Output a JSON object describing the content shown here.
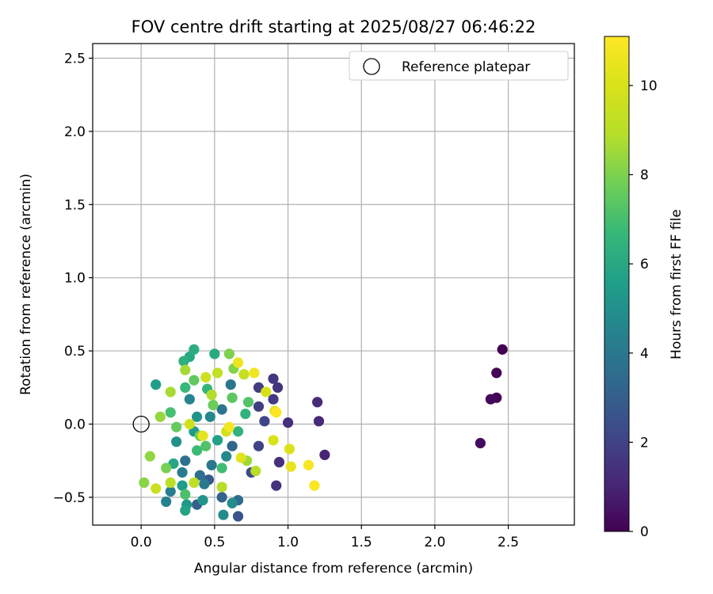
{
  "chart_data": {
    "type": "scatter",
    "title": "FOV centre drift starting at 2025/08/27 06:46:22",
    "xlabel": "Angular distance from reference (arcmin)",
    "ylabel": "Rotation from reference (arcmin)",
    "xlim": [
      -0.33,
      2.95
    ],
    "ylim": [
      -0.69,
      2.6
    ],
    "xticks": [
      0.0,
      0.5,
      1.0,
      1.5,
      2.0,
      2.5
    ],
    "xtick_labels": [
      "0.0",
      "0.5",
      "1.0",
      "1.5",
      "2.0",
      "2.5"
    ],
    "yticks": [
      -0.5,
      0.0,
      0.5,
      1.0,
      1.5,
      2.0,
      2.5
    ],
    "ytick_labels": [
      "−0.5",
      "0.0",
      "0.5",
      "1.0",
      "1.5",
      "2.0",
      "2.5"
    ],
    "grid": true,
    "legend": {
      "placement": "top-right",
      "entries": [
        "Reference platepar"
      ]
    },
    "reference_point": {
      "x": 0.0,
      "y": 0.0,
      "label": "Reference platepar"
    },
    "colorbar": {
      "label": "Hours from first FF file",
      "colormap": "viridis",
      "range": [
        0,
        11.1
      ],
      "ticks": [
        0,
        2,
        4,
        6,
        8,
        10
      ],
      "tick_labels": [
        "0",
        "2",
        "4",
        "6",
        "8",
        "10"
      ]
    },
    "points": [
      {
        "x": 2.46,
        "y": 0.51,
        "h": 0.0
      },
      {
        "x": 2.42,
        "y": 0.35,
        "h": 0.1
      },
      {
        "x": 2.42,
        "y": 0.18,
        "h": 0.1
      },
      {
        "x": 2.38,
        "y": 0.17,
        "h": 0.2
      },
      {
        "x": 2.31,
        "y": -0.13,
        "h": 0.3
      },
      {
        "x": 1.25,
        "y": -0.21,
        "h": 1.0
      },
      {
        "x": 1.21,
        "y": 0.02,
        "h": 1.1
      },
      {
        "x": 1.2,
        "y": 0.15,
        "h": 1.2
      },
      {
        "x": 1.0,
        "y": 0.01,
        "h": 1.3
      },
      {
        "x": 0.94,
        "y": -0.26,
        "h": 1.4
      },
      {
        "x": 0.92,
        "y": -0.42,
        "h": 1.5
      },
      {
        "x": 0.93,
        "y": 0.25,
        "h": 1.5
      },
      {
        "x": 0.9,
        "y": 0.31,
        "h": 1.6
      },
      {
        "x": 0.9,
        "y": 0.17,
        "h": 1.7
      },
      {
        "x": 0.8,
        "y": 0.25,
        "h": 1.8
      },
      {
        "x": 0.8,
        "y": 0.12,
        "h": 1.9
      },
      {
        "x": 0.8,
        "y": -0.15,
        "h": 2.0
      },
      {
        "x": 0.84,
        "y": 0.02,
        "h": 2.1
      },
      {
        "x": 0.75,
        "y": -0.33,
        "h": 2.3
      },
      {
        "x": 0.66,
        "y": -0.63,
        "h": 2.6
      },
      {
        "x": 0.46,
        "y": -0.38,
        "h": 2.8
      },
      {
        "x": 0.38,
        "y": -0.55,
        "h": 3.0
      },
      {
        "x": 0.55,
        "y": -0.5,
        "h": 3.2
      },
      {
        "x": 0.62,
        "y": -0.15,
        "h": 3.3
      },
      {
        "x": 0.66,
        "y": -0.52,
        "h": 3.5
      },
      {
        "x": 0.4,
        "y": -0.35,
        "h": 3.6
      },
      {
        "x": 0.3,
        "y": -0.25,
        "h": 3.7
      },
      {
        "x": 0.55,
        "y": 0.1,
        "h": 3.8
      },
      {
        "x": 0.61,
        "y": 0.27,
        "h": 3.9
      },
      {
        "x": 0.48,
        "y": -0.28,
        "h": 4.0
      },
      {
        "x": 0.43,
        "y": -0.41,
        "h": 4.1
      },
      {
        "x": 0.28,
        "y": -0.33,
        "h": 4.2
      },
      {
        "x": 0.2,
        "y": -0.46,
        "h": 4.3
      },
      {
        "x": 0.17,
        "y": -0.53,
        "h": 4.4
      },
      {
        "x": 0.33,
        "y": 0.17,
        "h": 4.5
      },
      {
        "x": 0.47,
        "y": 0.05,
        "h": 4.6
      },
      {
        "x": 0.58,
        "y": -0.22,
        "h": 4.7
      },
      {
        "x": 0.56,
        "y": -0.62,
        "h": 4.8
      },
      {
        "x": 0.62,
        "y": -0.54,
        "h": 4.9
      },
      {
        "x": 0.24,
        "y": -0.12,
        "h": 5.0
      },
      {
        "x": 0.38,
        "y": 0.05,
        "h": 5.1
      },
      {
        "x": 0.42,
        "y": -0.52,
        "h": 5.2
      },
      {
        "x": 0.31,
        "y": -0.55,
        "h": 5.3
      },
      {
        "x": 0.36,
        "y": -0.05,
        "h": 5.4
      },
      {
        "x": 0.28,
        "y": -0.42,
        "h": 5.5
      },
      {
        "x": 0.1,
        "y": 0.27,
        "h": 5.6
      },
      {
        "x": 0.52,
        "y": -0.11,
        "h": 5.7
      },
      {
        "x": 0.3,
        "y": -0.59,
        "h": 5.8
      },
      {
        "x": 0.22,
        "y": -0.27,
        "h": 5.9
      },
      {
        "x": 0.33,
        "y": 0.46,
        "h": 6.0
      },
      {
        "x": 0.5,
        "y": 0.48,
        "h": 6.1
      },
      {
        "x": 0.36,
        "y": 0.51,
        "h": 6.2
      },
      {
        "x": 0.29,
        "y": 0.43,
        "h": 6.3
      },
      {
        "x": 0.71,
        "y": 0.07,
        "h": 6.4
      },
      {
        "x": 0.66,
        "y": -0.05,
        "h": 6.5
      },
      {
        "x": 0.45,
        "y": 0.24,
        "h": 6.6
      },
      {
        "x": 0.3,
        "y": 0.25,
        "h": 6.7
      },
      {
        "x": 0.38,
        "y": -0.18,
        "h": 6.8
      },
      {
        "x": 0.55,
        "y": -0.3,
        "h": 6.9
      },
      {
        "x": 0.2,
        "y": 0.08,
        "h": 7.0
      },
      {
        "x": 0.3,
        "y": -0.48,
        "h": 7.1
      },
      {
        "x": 0.44,
        "y": -0.15,
        "h": 7.2
      },
      {
        "x": 0.73,
        "y": 0.15,
        "h": 7.3
      },
      {
        "x": 0.62,
        "y": 0.18,
        "h": 7.4
      },
      {
        "x": 0.36,
        "y": 0.3,
        "h": 7.5
      },
      {
        "x": 0.24,
        "y": -0.02,
        "h": 7.6
      },
      {
        "x": 0.49,
        "y": 0.13,
        "h": 7.7
      },
      {
        "x": 0.4,
        "y": -0.08,
        "h": 7.8
      },
      {
        "x": 0.17,
        "y": -0.3,
        "h": 7.9
      },
      {
        "x": 0.6,
        "y": 0.48,
        "h": 8.0
      },
      {
        "x": 0.63,
        "y": 0.38,
        "h": 8.1
      },
      {
        "x": 0.02,
        "y": -0.4,
        "h": 8.2
      },
      {
        "x": 0.06,
        "y": -0.22,
        "h": 8.3
      },
      {
        "x": 0.13,
        "y": 0.05,
        "h": 8.4
      },
      {
        "x": 0.72,
        "y": -0.25,
        "h": 8.5
      },
      {
        "x": 0.3,
        "y": 0.37,
        "h": 8.6
      },
      {
        "x": 0.2,
        "y": 0.22,
        "h": 8.7
      },
      {
        "x": 0.48,
        "y": 0.2,
        "h": 8.8
      },
      {
        "x": 0.55,
        "y": -0.43,
        "h": 8.9
      },
      {
        "x": 0.78,
        "y": -0.32,
        "h": 9.0
      },
      {
        "x": 0.2,
        "y": -0.4,
        "h": 9.1
      },
      {
        "x": 0.36,
        "y": -0.4,
        "h": 9.2
      },
      {
        "x": 0.52,
        "y": 0.35,
        "h": 9.3
      },
      {
        "x": 0.7,
        "y": 0.34,
        "h": 9.4
      },
      {
        "x": 0.1,
        "y": -0.44,
        "h": 9.5
      },
      {
        "x": 0.44,
        "y": 0.32,
        "h": 9.6
      },
      {
        "x": 0.33,
        "y": 0.0,
        "h": 9.7
      },
      {
        "x": 0.58,
        "y": -0.05,
        "h": 9.8
      },
      {
        "x": 0.85,
        "y": 0.22,
        "h": 9.9
      },
      {
        "x": 0.9,
        "y": -0.11,
        "h": 10.0
      },
      {
        "x": 1.01,
        "y": -0.17,
        "h": 10.1
      },
      {
        "x": 0.91,
        "y": 0.09,
        "h": 10.2
      },
      {
        "x": 0.68,
        "y": -0.23,
        "h": 10.3
      },
      {
        "x": 0.42,
        "y": -0.08,
        "h": 10.4
      },
      {
        "x": 1.02,
        "y": -0.29,
        "h": 10.5
      },
      {
        "x": 0.66,
        "y": 0.42,
        "h": 10.6
      },
      {
        "x": 0.77,
        "y": 0.35,
        "h": 10.7
      },
      {
        "x": 0.6,
        "y": -0.02,
        "h": 10.8
      },
      {
        "x": 1.14,
        "y": -0.28,
        "h": 10.9
      },
      {
        "x": 1.18,
        "y": -0.42,
        "h": 11.0
      },
      {
        "x": 0.92,
        "y": 0.08,
        "h": 11.1
      }
    ]
  }
}
